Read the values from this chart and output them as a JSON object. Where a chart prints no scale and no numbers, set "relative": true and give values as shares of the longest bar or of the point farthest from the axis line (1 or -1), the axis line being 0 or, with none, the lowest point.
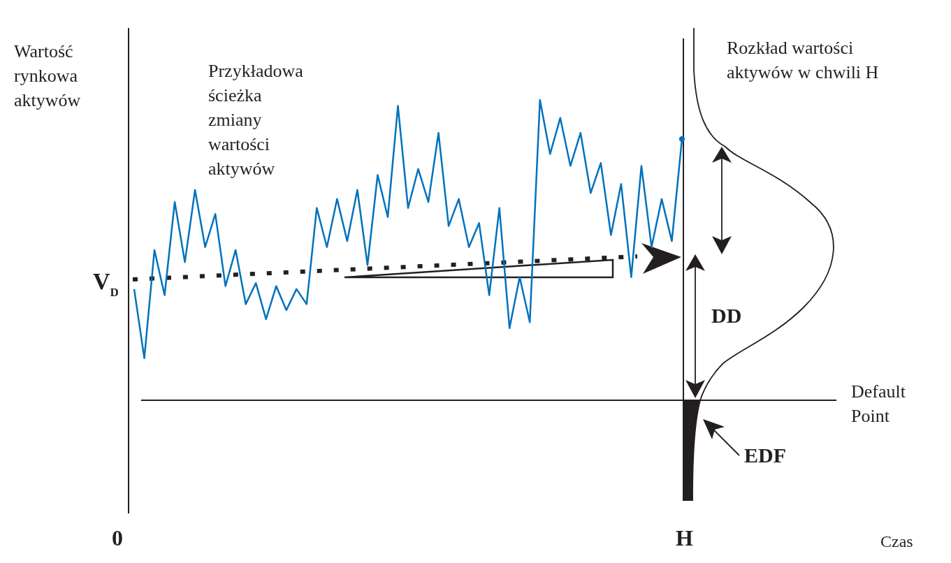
{
  "chart_data": {
    "type": "line",
    "relative": true,
    "ylabel": "Wartość rynkowa aktywów",
    "annotations": [
      "Przykładowa ścieżka zmiany wartości aktywów",
      "Rozkład wartości aktywów w chwili H",
      "DD",
      "EDF",
      "0",
      "H",
      "V$_{D}$",
      "Czas",
      "Default Point"
    ],
    "categories": [
      null,
      null,
      null,
      null,
      null,
      null,
      null,
      null,
      null,
      null,
      null,
      null,
      null,
      null,
      null,
      null,
      null,
      null,
      null,
      null,
      null,
      null,
      null,
      null,
      null,
      null,
      null,
      null,
      null,
      null,
      null,
      null,
      null,
      null,
      null,
      null,
      null,
      null,
      null,
      null,
      null,
      null,
      null,
      null,
      null,
      null,
      null,
      null,
      null,
      null,
      null,
      null,
      null,
      null,
      null
    ],
    "series": [
      {
        "color": "#0072bc",
        "values": [
          0.37,
          0.14,
          0.5,
          0.35,
          0.66,
          0.46,
          0.7,
          0.51,
          0.62,
          0.38,
          0.5,
          0.32,
          0.39,
          0.27,
          0.38,
          0.3,
          0.37,
          0.32,
          0.64,
          0.51,
          0.67,
          0.53,
          0.7,
          0.45,
          0.75,
          0.61,
          0.98,
          0.64,
          0.77,
          0.66,
          0.89,
          0.58,
          0.67,
          0.51,
          0.59,
          0.35,
          0.64,
          0.24,
          0.41,
          0.26,
          1,
          0.82,
          0.94,
          0.78,
          0.89,
          0.69,
          0.79,
          0.55,
          0.72,
          0.41,
          0.78,
          0.51,
          0.67,
          0.53,
          0.87
        ]
      }
    ]
  }
}
